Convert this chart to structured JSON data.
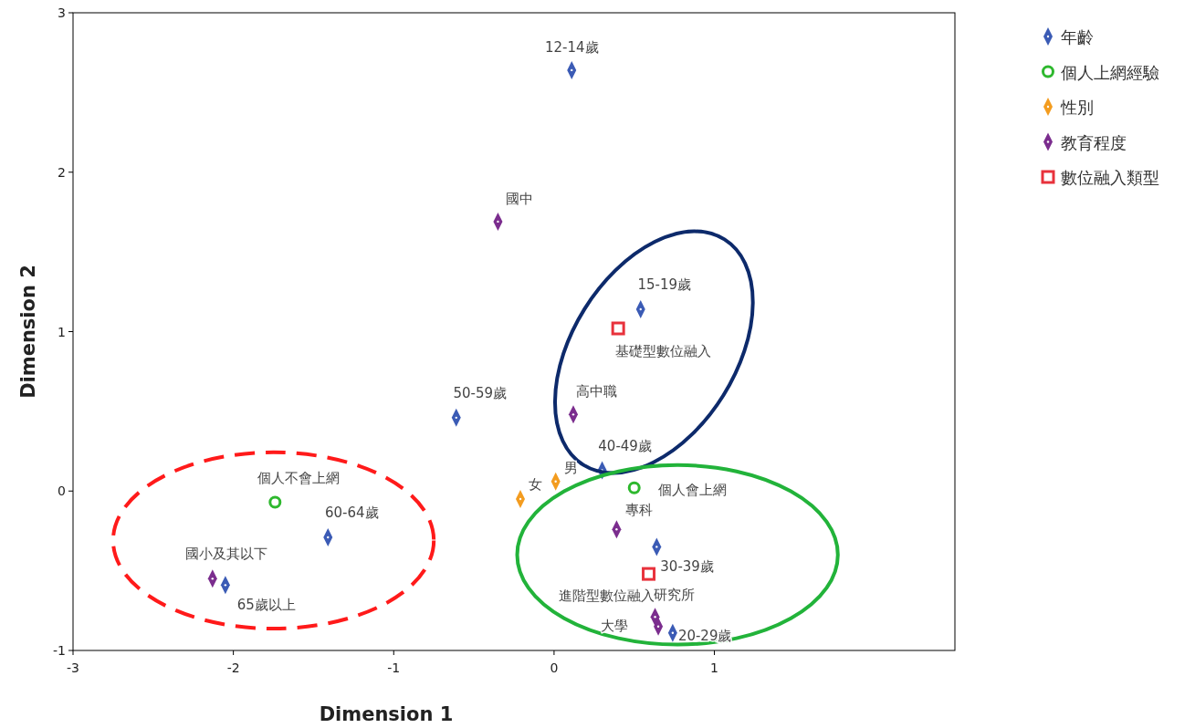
{
  "chart_data": {
    "type": "scatter",
    "xlabel": "Dimension 1",
    "ylabel": "Dimension 2",
    "xlim": [
      -3,
      2.5
    ],
    "ylim": [
      -1,
      3
    ],
    "xticks": [
      -3,
      -2,
      -1,
      0,
      1
    ],
    "yticks": [
      -1,
      0,
      1,
      2,
      3
    ],
    "grid": false,
    "legend": "top right",
    "series": [
      {
        "name": "年齡",
        "color": "#3b5bb5",
        "marker": "diamond",
        "x": [
          0.11,
          0.54,
          -0.61,
          0.3,
          -1.41,
          0.64,
          0.74,
          -2.05
        ],
        "values": [
          2.64,
          1.14,
          0.46,
          0.13,
          -0.29,
          -0.35,
          -0.89,
          -0.59
        ]
      },
      {
        "name": "個人上網經驗",
        "color": "#2eb82e",
        "marker": "circle",
        "x": [
          -1.74,
          0.5
        ],
        "values": [
          -0.07,
          0.02
        ]
      },
      {
        "name": "性別",
        "color": "#f39c1f",
        "marker": "diamond",
        "x": [
          0.01,
          -0.21
        ],
        "values": [
          0.06,
          -0.05
        ]
      },
      {
        "name": "教育程度",
        "color": "#7b2d8e",
        "marker": "diamond",
        "x": [
          -0.35,
          0.12,
          0.39,
          0.63,
          0.65,
          -2.13
        ],
        "values": [
          1.69,
          0.48,
          -0.24,
          -0.79,
          -0.85,
          -0.55
        ]
      },
      {
        "name": "數位融入類型",
        "color": "#e8323c",
        "marker": "square",
        "x": [
          0.4,
          0.59
        ],
        "values": [
          1.02,
          -0.52
        ]
      }
    ],
    "annotations": [
      {
        "text": "12-14歲",
        "x": 0.11,
        "y": 2.64
      },
      {
        "text": "15-19歲",
        "x": 0.54,
        "y": 1.14
      },
      {
        "text": "50-59歲",
        "x": -0.61,
        "y": 0.46
      },
      {
        "text": "40-49歲",
        "x": 0.3,
        "y": 0.13
      },
      {
        "text": "60-64歲",
        "x": -1.41,
        "y": -0.29
      },
      {
        "text": "30-39歲",
        "x": 0.64,
        "y": -0.35
      },
      {
        "text": "20-29歲",
        "x": 0.74,
        "y": -0.89
      },
      {
        "text": "65歲以上",
        "x": -2.05,
        "y": -0.59
      },
      {
        "text": "個人不會上網",
        "x": -1.74,
        "y": -0.07
      },
      {
        "text": "個人會上網",
        "x": 0.5,
        "y": 0.02
      },
      {
        "text": "男",
        "x": 0.01,
        "y": 0.06
      },
      {
        "text": "女",
        "x": -0.21,
        "y": -0.05
      },
      {
        "text": "國中",
        "x": -0.35,
        "y": 1.69
      },
      {
        "text": "高中職",
        "x": 0.12,
        "y": 0.48
      },
      {
        "text": "專科",
        "x": 0.39,
        "y": -0.24
      },
      {
        "text": "大學",
        "x": 0.63,
        "y": -0.79
      },
      {
        "text": "研究所",
        "x": 0.65,
        "y": -0.85
      },
      {
        "text": "國小及其以下",
        "x": -2.13,
        "y": -0.55
      },
      {
        "text": "基礎型數位融入",
        "x": 0.4,
        "y": 1.02
      },
      {
        "text": "進階型數位融入",
        "x": 0.59,
        "y": -0.52
      }
    ]
  }
}
